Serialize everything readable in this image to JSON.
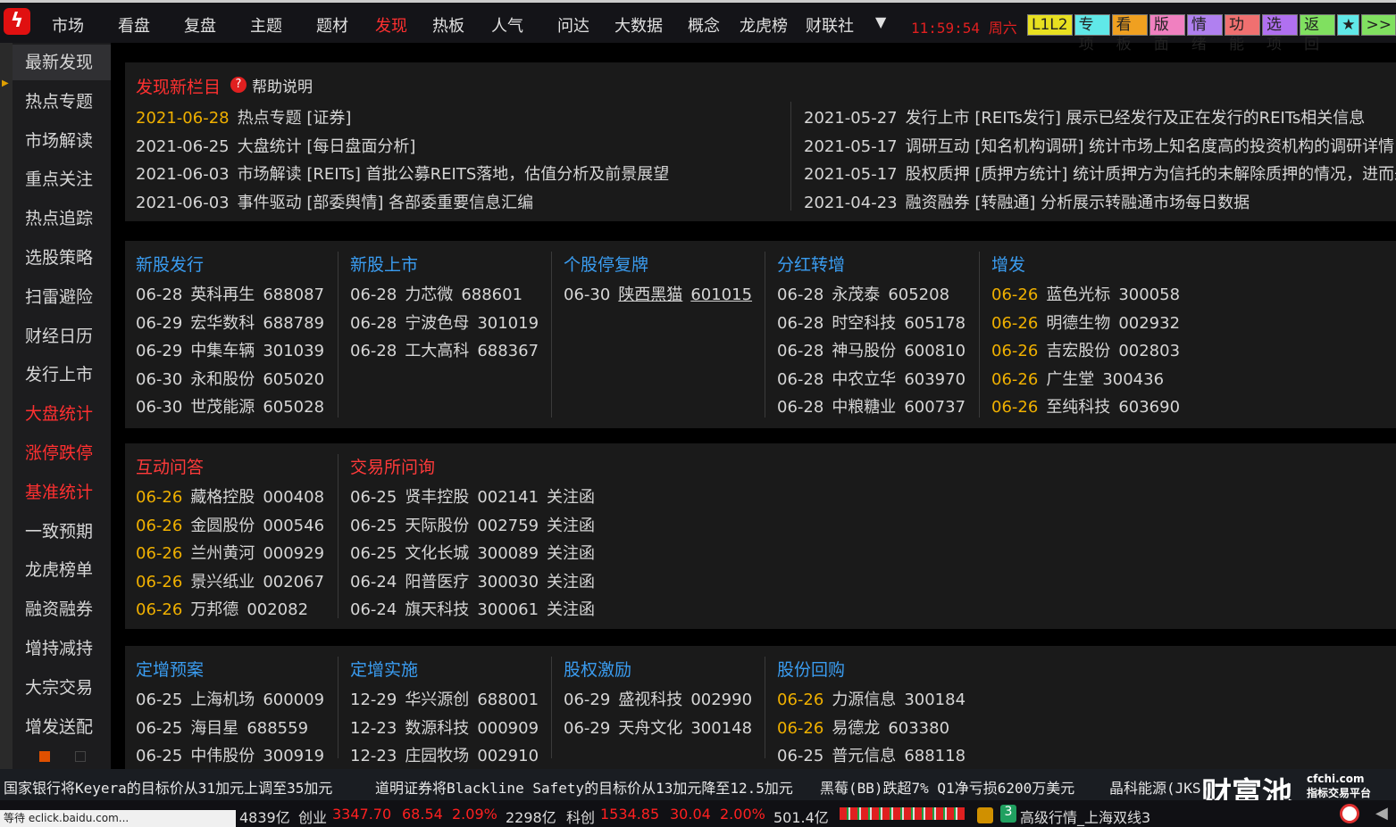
{
  "top": {
    "menu": [
      "市场",
      "看盘",
      "复盘",
      "主题",
      "题材",
      "发现",
      "热板",
      "人气",
      "问达",
      "大数据",
      "概念",
      "龙虎榜",
      "财联社"
    ],
    "active": "发现",
    "dropdown": "▼",
    "clock": "11:59:54 周六",
    "buttons": [
      {
        "label": "L1L2",
        "color": "#e8e020"
      },
      {
        "label": "专项",
        "color": "#60e8e8"
      },
      {
        "label": "看板",
        "color": "#f0a020"
      },
      {
        "label": "版面",
        "color": "#f080c0"
      },
      {
        "label": "情绪",
        "color": "#b080f0"
      },
      {
        "label": "功能",
        "color": "#f07070"
      },
      {
        "label": "选项",
        "color": "#b070f0"
      },
      {
        "label": "返回",
        "color": "#80e060"
      },
      {
        "label": "★",
        "color": "#60e8e8"
      },
      {
        "label": ">>",
        "color": "#80e060"
      }
    ]
  },
  "sidebar": [
    {
      "label": "最新发现",
      "state": "selected"
    },
    {
      "label": "热点专题"
    },
    {
      "label": "市场解读"
    },
    {
      "label": "重点关注"
    },
    {
      "label": "热点追踪"
    },
    {
      "label": "选股策略"
    },
    {
      "label": "扫雷避险"
    },
    {
      "label": "财经日历"
    },
    {
      "label": "发行上市"
    },
    {
      "label": "大盘统计",
      "state": "red"
    },
    {
      "label": "涨停跌停",
      "state": "red"
    },
    {
      "label": "基准统计",
      "state": "red"
    },
    {
      "label": "一致预期"
    },
    {
      "label": "龙虎榜单"
    },
    {
      "label": "融资融券"
    },
    {
      "label": "增持减持"
    },
    {
      "label": "大宗交易"
    },
    {
      "label": "增发送配"
    }
  ],
  "news": {
    "title": "发现新栏目",
    "help": "帮助说明",
    "left": [
      {
        "date": "2021-06-28",
        "text": "热点专题 [证券]",
        "hl": true
      },
      {
        "date": "2021-06-25",
        "text": "大盘统计 [每日盘面分析]"
      },
      {
        "date": "2021-06-03",
        "text": "市场解读 [REITs]  首批公募REITS落地，估值分析及前景展望"
      },
      {
        "date": "2021-06-03",
        "text": "事件驱动 [部委舆情]  各部委重要信息汇编"
      }
    ],
    "right": [
      {
        "date": "2021-05-27",
        "text": "发行上市 [REITs发行]  展示已经发行及正在发行的REITs相关信息"
      },
      {
        "date": "2021-05-17",
        "text": "调研互动 [知名机构调研]  统计市场上知名度高的投资机构的调研详情"
      },
      {
        "date": "2021-05-17",
        "text": "股权质押 [质押方统计]  统计质押方为信托的未解除质押的情况，进而来"
      },
      {
        "date": "2021-04-23",
        "text": "融资融券 [转融通]  分析展示转融通市场每日数据"
      }
    ]
  },
  "sections": [
    [
      {
        "title": "新股发行",
        "color": "#3a9cf0",
        "items": [
          [
            "06-28",
            "英科再生",
            "688087"
          ],
          [
            "06-29",
            "宏华数科",
            "688789"
          ],
          [
            "06-29",
            "中集车辆",
            "301039"
          ],
          [
            "06-30",
            "永和股份",
            "605020"
          ],
          [
            "06-30",
            "世茂能源",
            "605028"
          ]
        ]
      },
      {
        "title": "新股上市",
        "color": "#3a9cf0",
        "items": [
          [
            "06-28",
            "力芯微",
            "688601"
          ],
          [
            "06-28",
            "宁波色母",
            "301019"
          ],
          [
            "06-28",
            "工大高科",
            "688367"
          ]
        ]
      },
      {
        "title": "个股停复牌",
        "color": "#3a9cf0",
        "items": [
          [
            "06-30",
            "陕西黑猫",
            "601015"
          ]
        ],
        "underline": true
      },
      {
        "title": "分红转增",
        "color": "#3a9cf0",
        "items": [
          [
            "06-28",
            "永茂泰",
            "605208"
          ],
          [
            "06-28",
            "时空科技",
            "605178"
          ],
          [
            "06-28",
            "神马股份",
            "600810"
          ],
          [
            "06-28",
            "中农立华",
            "603970"
          ],
          [
            "06-28",
            "中粮糖业",
            "600737"
          ]
        ]
      },
      {
        "title": "增发",
        "color": "#3a9cf0",
        "hl": true,
        "items": [
          [
            "06-26",
            "蓝色光标",
            "300058"
          ],
          [
            "06-26",
            "明德生物",
            "002932"
          ],
          [
            "06-26",
            "吉宏股份",
            "002803"
          ],
          [
            "06-26",
            "广生堂",
            "300436"
          ],
          [
            "06-26",
            "至纯科技",
            "603690"
          ]
        ]
      }
    ],
    [
      {
        "title": "互动问答",
        "color": "#ff3a3a",
        "hl": true,
        "items": [
          [
            "06-26",
            "藏格控股",
            "000408"
          ],
          [
            "06-26",
            "金圆股份",
            "000546"
          ],
          [
            "06-26",
            "兰州黄河",
            "000929"
          ],
          [
            "06-26",
            "景兴纸业",
            "002067"
          ],
          [
            "06-26",
            "万邦德",
            "002082"
          ]
        ]
      },
      {
        "title": "交易所问询",
        "color": "#ff3a3a",
        "items": [
          [
            "06-25",
            "贤丰控股",
            "002141",
            "关注函"
          ],
          [
            "06-25",
            "天际股份",
            "002759",
            "关注函"
          ],
          [
            "06-25",
            "文化长城",
            "300089",
            "关注函"
          ],
          [
            "06-24",
            "阳普医疗",
            "300030",
            "关注函"
          ],
          [
            "06-24",
            "旗天科技",
            "300061",
            "关注函"
          ]
        ]
      }
    ],
    [
      {
        "title": "定增预案",
        "color": "#3a9cf0",
        "items": [
          [
            "06-25",
            "上海机场",
            "600009"
          ],
          [
            "06-25",
            "海目星",
            "688559"
          ],
          [
            "06-25",
            "中伟股份",
            "300919"
          ]
        ]
      },
      {
        "title": "定增实施",
        "color": "#3a9cf0",
        "items": [
          [
            "12-29",
            "华兴源创",
            "688001"
          ],
          [
            "12-23",
            "数源科技",
            "000909"
          ],
          [
            "12-23",
            "庄园牧场",
            "002910"
          ]
        ]
      },
      {
        "title": "股权激励",
        "color": "#3a9cf0",
        "items": [
          [
            "06-29",
            "盛视科技",
            "002990"
          ],
          [
            "06-29",
            "天舟文化",
            "300148"
          ]
        ]
      },
      {
        "title": "股份回购",
        "color": "#3a9cf0",
        "items": [
          [
            "06-26",
            "力源信息",
            "300184",
            "",
            "hl"
          ],
          [
            "06-26",
            "易德龙",
            "603380",
            "",
            "hl"
          ],
          [
            "06-25",
            "普元信息",
            "688118"
          ]
        ]
      }
    ]
  ],
  "ticker": [
    "国家银行将Keyera的目标价从31加元上调至35加元",
    "道明证券将Blackline Safety的目标价从13加元降至12.5加元",
    "黑莓(BB)跌超7% Q1净亏损6200万美元",
    "晶科能源(JKS)"
  ],
  "bottom": {
    "sh_vol": "4839亿",
    "cy_label": "创业",
    "cy": "3347.70",
    "cy_chg": "68.54",
    "cy_pct": "2.09%",
    "cy_vol": "2298亿",
    "kc_label": "科创",
    "kc": "1534.85",
    "kc_chg": "30.04",
    "kc_pct": "2.00%",
    "kc_vol": "501.4亿",
    "badge": "3",
    "feed": "高级行情_上海双线3"
  },
  "status": "等待 eclick.baidu.com...",
  "watermark": {
    "text": "财富池",
    "sub": "cfchi.com 指标交易平台"
  }
}
